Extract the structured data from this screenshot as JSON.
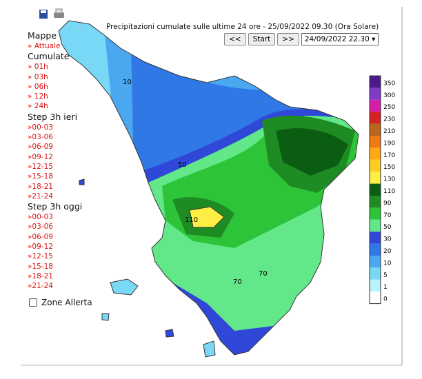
{
  "header": {
    "title": "Precipitazioni cumulate sulle ultime 24 ore - 25/09/2022 09.30 (Ora Solare)",
    "buttons": [
      "<<",
      "Start",
      ">>"
    ],
    "select": "24/09/2022 22.30"
  },
  "sidebar": {
    "sections": [
      {
        "title": "Mappe",
        "items": [
          "» Attuale"
        ]
      },
      {
        "title": "Cumulate",
        "items": [
          "» 01h",
          "» 03h",
          "» 06h",
          "» 12h",
          "» 24h"
        ]
      },
      {
        "title": "Step 3h ieri",
        "items": [
          "»00-03",
          "»03-06",
          "»06-09",
          "»09-12",
          "»12-15",
          "»15-18",
          "»18-21",
          "»21-24"
        ]
      },
      {
        "title": "Step 3h oggi",
        "items": [
          "»00-03",
          "»03-06",
          "»06-09",
          "»09-12",
          "»12-15",
          "»15-18",
          "»18-21",
          "»21-24"
        ]
      }
    ],
    "checkbox_label": "Zone Allerta"
  },
  "map": {
    "contour_labels": [
      "50",
      "70",
      "110",
      "10",
      "70"
    ]
  },
  "legend": {
    "labels": [
      "350",
      "300",
      "250",
      "230",
      "210",
      "190",
      "170",
      "150",
      "130",
      "110",
      "90",
      "70",
      "50",
      "30",
      "20",
      "10",
      "5",
      "1",
      "0"
    ],
    "colors": [
      "#4b1a8c",
      "#7e3ac6",
      "#d61fa8",
      "#d42020",
      "#b8661e",
      "#ee7a10",
      "#ffaa10",
      "#ffcc20",
      "#ffee44",
      "#0b5d12",
      "#1e8c22",
      "#2ec43a",
      "#62e888",
      "#3048d8",
      "#2f78e6",
      "#4aa8f0",
      "#79d8f5",
      "#b8f4f8",
      "#ffffff"
    ]
  }
}
